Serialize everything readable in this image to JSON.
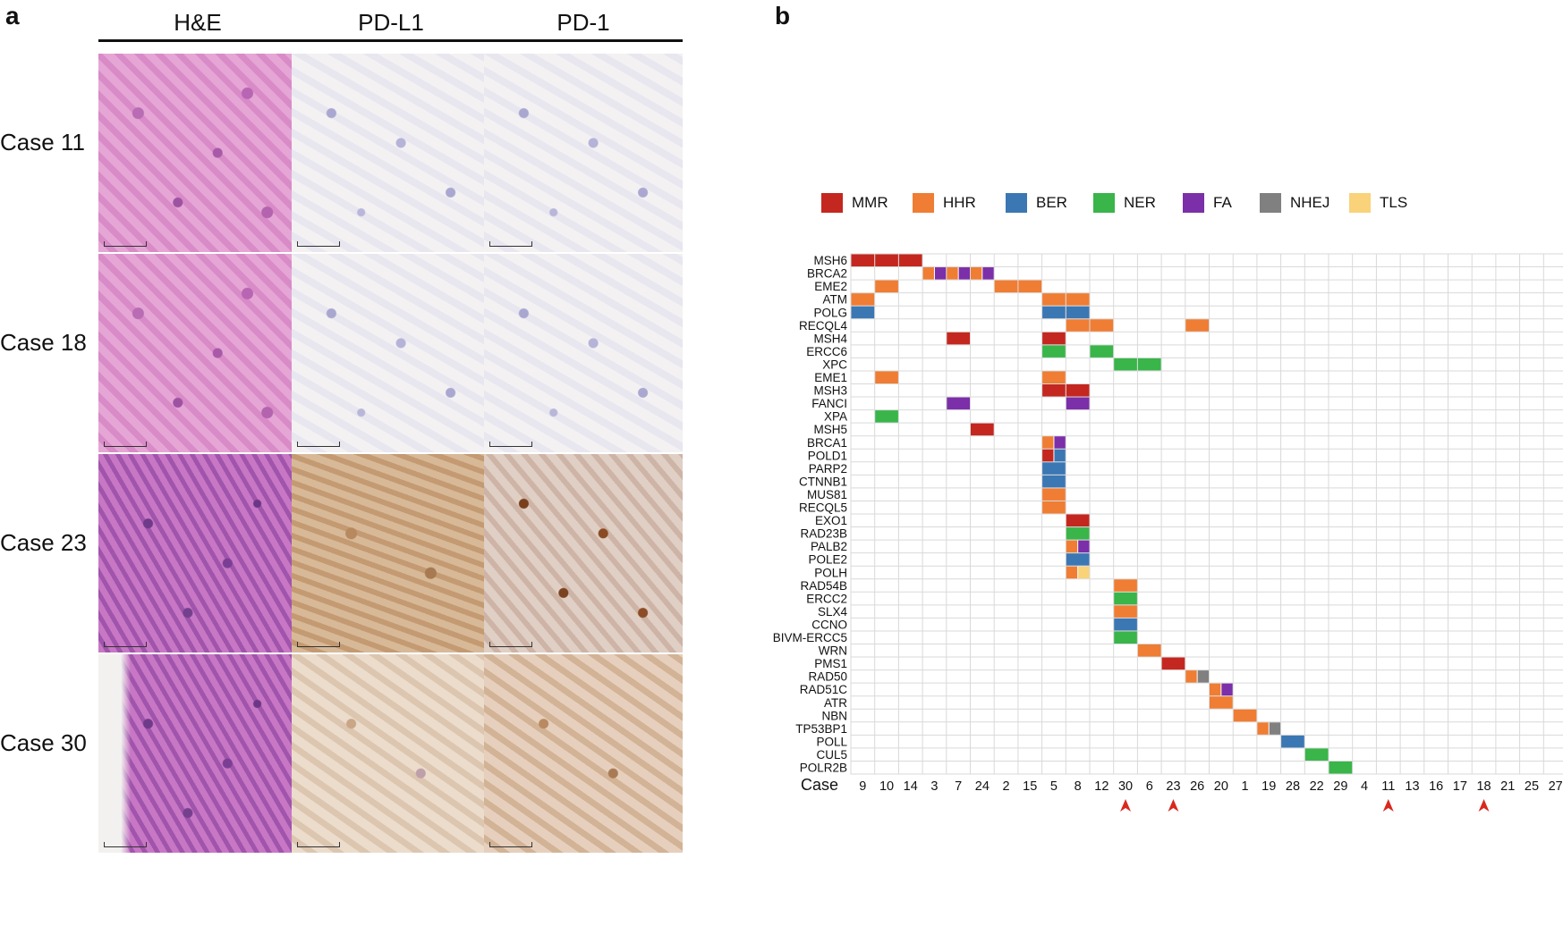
{
  "panel_a": {
    "letter": "a",
    "columns": [
      "H&E",
      "PD-L1",
      "PD-1"
    ],
    "cases": [
      "Case 11",
      "Case 18",
      "Case 23",
      "Case 30"
    ]
  },
  "panel_b": {
    "letter": "b",
    "legend": [
      {
        "label": "MMR",
        "color": "#c4271f"
      },
      {
        "label": "HHR",
        "color": "#ef7d33"
      },
      {
        "label": "BER",
        "color": "#3b77b3"
      },
      {
        "label": "NER",
        "color": "#39b54a"
      },
      {
        "label": "FA",
        "color": "#7b2fa8"
      },
      {
        "label": "NHEJ",
        "color": "#808080"
      },
      {
        "label": "TLS",
        "color": "#f9d27a"
      }
    ],
    "case_axis_label": "Case",
    "cases": [
      "9",
      "10",
      "14",
      "3",
      "7",
      "24",
      "2",
      "15",
      "5",
      "8",
      "12",
      "30",
      "6",
      "23",
      "26",
      "20",
      "1",
      "19",
      "28",
      "22",
      "29",
      "4",
      "11",
      "13",
      "16",
      "17",
      "18",
      "21",
      "25",
      "27"
    ],
    "highlighted_cases": [
      "30",
      "23",
      "11",
      "18"
    ],
    "genes": [
      "MSH6",
      "BRCA2",
      "EME2",
      "ATM",
      "POLG",
      "RECQL4",
      "MSH4",
      "ERCC6",
      "XPC",
      "EME1",
      "MSH3",
      "FANCI",
      "XPA",
      "MSH5",
      "BRCA1",
      "POLD1",
      "PARP2",
      "CTNNB1",
      "MUS81",
      "RECQL5",
      "EXO1",
      "RAD23B",
      "PALB2",
      "POLE2",
      "POLH",
      "RAD54B",
      "ERCC2",
      "SLX4",
      "CCNO",
      "BIVM-ERCC5",
      "WRN",
      "PMS1",
      "RAD50",
      "RAD51C",
      "ATR",
      "NBN",
      "TP53BP1",
      "POLL",
      "CUL5",
      "POLR2B"
    ],
    "chart_data": {
      "type": "heatmap",
      "x": [
        "9",
        "10",
        "14",
        "3",
        "7",
        "24",
        "2",
        "15",
        "5",
        "8",
        "12",
        "30",
        "6",
        "23",
        "26",
        "20",
        "1",
        "19",
        "28",
        "22",
        "29",
        "4",
        "11",
        "13",
        "16",
        "17",
        "18",
        "21",
        "25",
        "27"
      ],
      "y": [
        "MSH6",
        "BRCA2",
        "EME2",
        "ATM",
        "POLG",
        "RECQL4",
        "MSH4",
        "ERCC6",
        "XPC",
        "EME1",
        "MSH3",
        "FANCI",
        "XPA",
        "MSH5",
        "BRCA1",
        "POLD1",
        "PARP2",
        "CTNNB1",
        "MUS81",
        "RECQL5",
        "EXO1",
        "RAD23B",
        "PALB2",
        "POLE2",
        "POLH",
        "RAD54B",
        "ERCC2",
        "SLX4",
        "CCNO",
        "BIVM-ERCC5",
        "WRN",
        "PMS1",
        "RAD50",
        "RAD51C",
        "ATR",
        "NBN",
        "TP53BP1",
        "POLL",
        "CUL5",
        "POLR2B"
      ],
      "xlabel": "Case",
      "cells": [
        {
          "gene": "MSH6",
          "case": "9",
          "parts": [
            "MMR"
          ]
        },
        {
          "gene": "MSH6",
          "case": "10",
          "parts": [
            "MMR"
          ]
        },
        {
          "gene": "MSH6",
          "case": "14",
          "parts": [
            "MMR"
          ]
        },
        {
          "gene": "BRCA2",
          "case": "3",
          "parts": [
            "HHR",
            "FA"
          ]
        },
        {
          "gene": "BRCA2",
          "case": "7",
          "parts": [
            "HHR",
            "FA"
          ]
        },
        {
          "gene": "BRCA2",
          "case": "24",
          "parts": [
            "HHR",
            "FA"
          ]
        },
        {
          "gene": "EME2",
          "case": "10",
          "parts": [
            "HHR"
          ]
        },
        {
          "gene": "EME2",
          "case": "2",
          "parts": [
            "HHR"
          ]
        },
        {
          "gene": "EME2",
          "case": "15",
          "parts": [
            "HHR"
          ]
        },
        {
          "gene": "ATM",
          "case": "9",
          "parts": [
            "HHR"
          ]
        },
        {
          "gene": "ATM",
          "case": "5",
          "parts": [
            "HHR"
          ]
        },
        {
          "gene": "ATM",
          "case": "8",
          "parts": [
            "HHR"
          ]
        },
        {
          "gene": "POLG",
          "case": "9",
          "parts": [
            "BER"
          ]
        },
        {
          "gene": "POLG",
          "case": "5",
          "parts": [
            "BER"
          ]
        },
        {
          "gene": "POLG",
          "case": "8",
          "parts": [
            "BER"
          ]
        },
        {
          "gene": "RECQL4",
          "case": "8",
          "parts": [
            "HHR"
          ]
        },
        {
          "gene": "RECQL4",
          "case": "12",
          "parts": [
            "HHR"
          ]
        },
        {
          "gene": "RECQL4",
          "case": "26",
          "parts": [
            "HHR"
          ]
        },
        {
          "gene": "MSH4",
          "case": "7",
          "parts": [
            "MMR"
          ]
        },
        {
          "gene": "MSH4",
          "case": "5",
          "parts": [
            "MMR"
          ]
        },
        {
          "gene": "ERCC6",
          "case": "5",
          "parts": [
            "NER"
          ]
        },
        {
          "gene": "ERCC6",
          "case": "12",
          "parts": [
            "NER"
          ]
        },
        {
          "gene": "XPC",
          "case": "30",
          "parts": [
            "NER"
          ]
        },
        {
          "gene": "XPC",
          "case": "6",
          "parts": [
            "NER"
          ]
        },
        {
          "gene": "EME1",
          "case": "10",
          "parts": [
            "HHR"
          ]
        },
        {
          "gene": "EME1",
          "case": "5",
          "parts": [
            "HHR"
          ]
        },
        {
          "gene": "MSH3",
          "case": "5",
          "parts": [
            "MMR"
          ]
        },
        {
          "gene": "MSH3",
          "case": "8",
          "parts": [
            "MMR"
          ]
        },
        {
          "gene": "FANCI",
          "case": "7",
          "parts": [
            "FA"
          ]
        },
        {
          "gene": "FANCI",
          "case": "8",
          "parts": [
            "FA"
          ]
        },
        {
          "gene": "XPA",
          "case": "10",
          "parts": [
            "NER"
          ]
        },
        {
          "gene": "MSH5",
          "case": "24",
          "parts": [
            "MMR"
          ]
        },
        {
          "gene": "BRCA1",
          "case": "5",
          "parts": [
            "HHR",
            "FA"
          ]
        },
        {
          "gene": "POLD1",
          "case": "5",
          "parts": [
            "MMR",
            "BER"
          ]
        },
        {
          "gene": "PARP2",
          "case": "5",
          "parts": [
            "BER"
          ]
        },
        {
          "gene": "CTNNB1",
          "case": "5",
          "parts": [
            "BER"
          ]
        },
        {
          "gene": "MUS81",
          "case": "5",
          "parts": [
            "HHR"
          ]
        },
        {
          "gene": "RECQL5",
          "case": "5",
          "parts": [
            "HHR"
          ]
        },
        {
          "gene": "EXO1",
          "case": "8",
          "parts": [
            "MMR"
          ]
        },
        {
          "gene": "RAD23B",
          "case": "8",
          "parts": [
            "NER"
          ]
        },
        {
          "gene": "PALB2",
          "case": "8",
          "parts": [
            "HHR",
            "FA"
          ]
        },
        {
          "gene": "POLE2",
          "case": "8",
          "parts": [
            "BER"
          ]
        },
        {
          "gene": "POLH",
          "case": "8",
          "parts": [
            "HHR",
            "TLS"
          ]
        },
        {
          "gene": "RAD54B",
          "case": "30",
          "parts": [
            "HHR"
          ]
        },
        {
          "gene": "ERCC2",
          "case": "30",
          "parts": [
            "NER"
          ]
        },
        {
          "gene": "SLX4",
          "case": "30",
          "parts": [
            "HHR"
          ]
        },
        {
          "gene": "CCNO",
          "case": "30",
          "parts": [
            "BER"
          ]
        },
        {
          "gene": "BIVM-ERCC5",
          "case": "30",
          "parts": [
            "NER"
          ]
        },
        {
          "gene": "WRN",
          "case": "6",
          "parts": [
            "HHR"
          ]
        },
        {
          "gene": "PMS1",
          "case": "23",
          "parts": [
            "MMR"
          ]
        },
        {
          "gene": "RAD50",
          "case": "26",
          "parts": [
            "HHR",
            "NHEJ"
          ]
        },
        {
          "gene": "RAD51C",
          "case": "20",
          "parts": [
            "HHR",
            "FA"
          ]
        },
        {
          "gene": "ATR",
          "case": "20",
          "parts": [
            "HHR"
          ]
        },
        {
          "gene": "NBN",
          "case": "1",
          "parts": [
            "HHR"
          ]
        },
        {
          "gene": "TP53BP1",
          "case": "19",
          "parts": [
            "HHR",
            "NHEJ"
          ]
        },
        {
          "gene": "POLL",
          "case": "28",
          "parts": [
            "BER"
          ]
        },
        {
          "gene": "CUL5",
          "case": "22",
          "parts": [
            "NER"
          ]
        },
        {
          "gene": "POLR2B",
          "case": "29",
          "parts": [
            "NER"
          ]
        }
      ]
    }
  }
}
